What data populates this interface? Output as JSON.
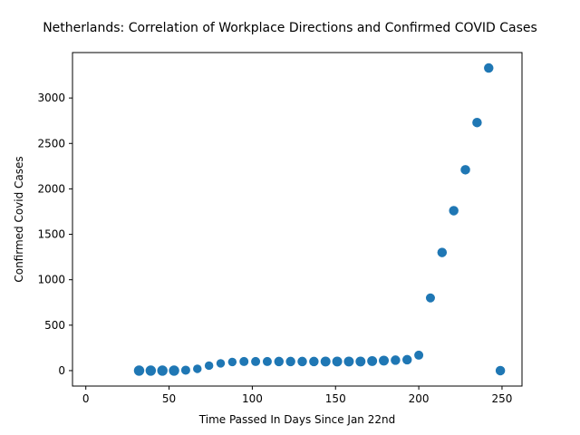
{
  "chart_data": {
    "type": "scatter",
    "title": "Netherlands: Correlation of Workplace Directions and Confirmed COVID Cases",
    "xlabel": "Time Passed In Days Since Jan 22nd",
    "ylabel": "Confirmed Covid Cases",
    "xlim": [
      -8,
      262
    ],
    "ylim": [
      -170,
      3500
    ],
    "xticks": [
      0,
      50,
      100,
      150,
      200,
      250
    ],
    "yticks": [
      0,
      500,
      1000,
      1500,
      2000,
      2500,
      3000
    ],
    "grid": false,
    "legend": "none",
    "color": "#1f77b4",
    "points": [
      {
        "x": 32,
        "y": 0,
        "size": 1.3
      },
      {
        "x": 39,
        "y": 0,
        "size": 1.3
      },
      {
        "x": 46,
        "y": 0,
        "size": 1.3
      },
      {
        "x": 53,
        "y": 0,
        "size": 1.3
      },
      {
        "x": 60,
        "y": 5,
        "size": 1.0
      },
      {
        "x": 67,
        "y": 20,
        "size": 0.9
      },
      {
        "x": 74,
        "y": 55,
        "size": 0.9
      },
      {
        "x": 81,
        "y": 80,
        "size": 0.9
      },
      {
        "x": 88,
        "y": 95,
        "size": 0.9
      },
      {
        "x": 95,
        "y": 100,
        "size": 1.0
      },
      {
        "x": 102,
        "y": 100,
        "size": 1.0
      },
      {
        "x": 109,
        "y": 100,
        "size": 1.0
      },
      {
        "x": 116,
        "y": 100,
        "size": 1.1
      },
      {
        "x": 123,
        "y": 100,
        "size": 1.1
      },
      {
        "x": 130,
        "y": 100,
        "size": 1.1
      },
      {
        "x": 137,
        "y": 100,
        "size": 1.1
      },
      {
        "x": 144,
        "y": 100,
        "size": 1.2
      },
      {
        "x": 151,
        "y": 100,
        "size": 1.2
      },
      {
        "x": 158,
        "y": 100,
        "size": 1.2
      },
      {
        "x": 165,
        "y": 100,
        "size": 1.2
      },
      {
        "x": 172,
        "y": 105,
        "size": 1.2
      },
      {
        "x": 179,
        "y": 110,
        "size": 1.2
      },
      {
        "x": 186,
        "y": 115,
        "size": 1.1
      },
      {
        "x": 193,
        "y": 120,
        "size": 1.1
      },
      {
        "x": 200,
        "y": 170,
        "size": 1.0
      },
      {
        "x": 207,
        "y": 800,
        "size": 1.0
      },
      {
        "x": 214,
        "y": 1300,
        "size": 1.1
      },
      {
        "x": 221,
        "y": 1760,
        "size": 1.1
      },
      {
        "x": 228,
        "y": 2210,
        "size": 1.1
      },
      {
        "x": 235,
        "y": 2730,
        "size": 1.1
      },
      {
        "x": 242,
        "y": 3330,
        "size": 1.1
      },
      {
        "x": 249,
        "y": 0,
        "size": 1.1
      }
    ]
  }
}
